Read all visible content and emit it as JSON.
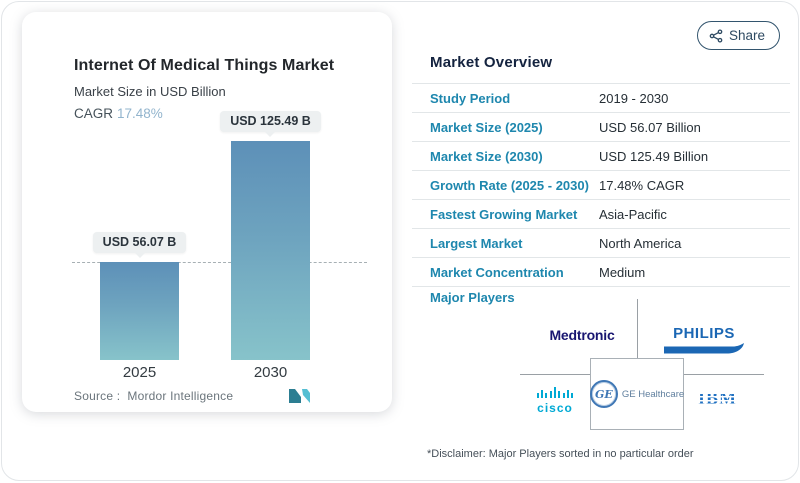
{
  "share": {
    "label": "Share",
    "icon": "share-nodes"
  },
  "chart": {
    "title": "Internet Of Medical Things Market",
    "subtitle": "Market Size in USD Billion",
    "cagr_label": "CAGR",
    "cagr_value": "17.48%",
    "source_label": "Source :",
    "source_value": "Mordor Intelligence",
    "logo": "mordor-intelligence-logo"
  },
  "chart_data": {
    "type": "bar",
    "title": "Internet Of Medical Things Market",
    "subtitle": "Market Size in USD Billion",
    "unit": "USD Billion",
    "categories": [
      "2025",
      "2030"
    ],
    "values": [
      56.07,
      125.49
    ],
    "bar_labels": [
      "USD 56.07 B",
      "USD 125.49 B"
    ],
    "cagr": "17.48%",
    "reference_line": {
      "at_value": 56.07,
      "style": "dashed"
    },
    "bar_gradient_top": "#5d90b8",
    "bar_gradient_bottom": "#87c3ca",
    "legend": "none",
    "grid": "off"
  },
  "overview": {
    "title": "Market Overview",
    "rows": [
      {
        "label": "Study Period",
        "value": "2019 - 2030"
      },
      {
        "label": "Market Size (2025)",
        "value": "USD 56.07 Billion"
      },
      {
        "label": "Market Size (2030)",
        "value": "USD 125.49 Billion"
      },
      {
        "label": "Growth Rate (2025 - 2030)",
        "value": "17.48% CAGR"
      },
      {
        "label": "Fastest Growing Market",
        "value": "Asia-Pacific"
      },
      {
        "label": "Largest Market",
        "value": "North America"
      },
      {
        "label": "Market Concentration",
        "value": "Medium"
      }
    ],
    "major_players_label": "Major Players",
    "players": {
      "medtronic": "Medtronic",
      "philips": "PHILIPS",
      "cisco": "cisco",
      "ge_monogram": "GE",
      "ge_healthcare": "GE Healthcare",
      "ibm": "IBM"
    },
    "disclaimer": "*Disclaimer: Major Players sorted in no particular order"
  },
  "colors": {
    "label_blue": "#1e87ae",
    "header_navy": "#14233f",
    "cagr_value_blue": "#92b4cd",
    "philips_blue": "#1b67b4",
    "cisco_blue": "#00a9d4",
    "ibm_blue": "#1f70c1",
    "medtronic_navy": "#191671",
    "divider_gray": "#e2e6e8"
  }
}
